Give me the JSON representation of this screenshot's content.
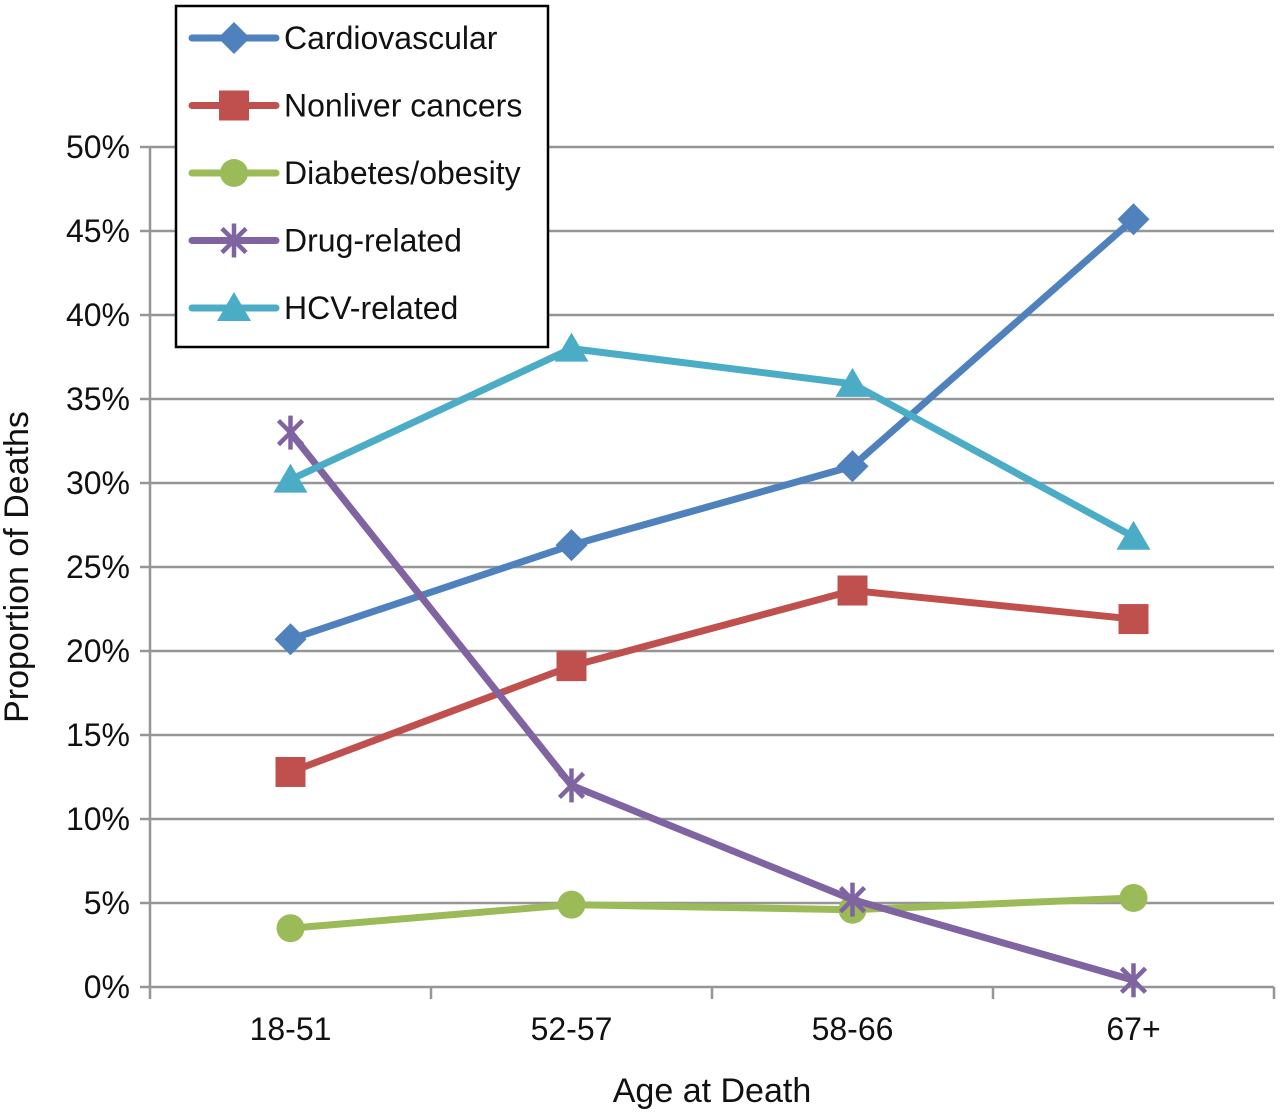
{
  "chart_data": {
    "type": "line",
    "title": "",
    "xlabel": "Age at Death",
    "ylabel": "Proportion of Deaths",
    "categories": [
      "18-51",
      "52-57",
      "58-66",
      "67+"
    ],
    "series": [
      {
        "name": "Cardiovascular",
        "color": "#4F81BD",
        "marker": "diamond",
        "values": [
          20.7,
          26.3,
          31.0,
          45.7
        ]
      },
      {
        "name": "Nonliver cancers",
        "color": "#C0504D",
        "marker": "square",
        "values": [
          12.8,
          19.1,
          23.6,
          21.9
        ]
      },
      {
        "name": "Diabetes/obesity",
        "color": "#9BBB59",
        "marker": "circle",
        "values": [
          3.5,
          4.9,
          4.6,
          5.3
        ]
      },
      {
        "name": "Drug-related",
        "color": "#8064A2",
        "marker": "asterisk",
        "values": [
          33.0,
          12.0,
          5.2,
          0.4
        ]
      },
      {
        "name": "HCV-related",
        "color": "#4BACC6",
        "marker": "triangle-up",
        "values": [
          30.2,
          38.0,
          35.9,
          26.8
        ]
      }
    ],
    "ylim": [
      0,
      50
    ],
    "ytick_step": 5,
    "ytick_format": "percent",
    "grid": "horizontal",
    "gridline_color": "#969696",
    "axis_color": "#969696",
    "text_color": "#111111",
    "legend_position": "top-left-inside",
    "legend_border_color": "#000000",
    "background": "#FFFFFF"
  }
}
